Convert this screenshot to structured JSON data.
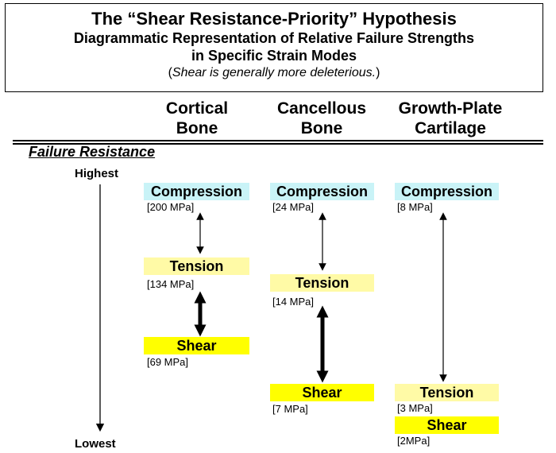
{
  "title": {
    "line1": "The “Shear Resistance-Priority” Hypothesis",
    "line2": "Diagrammatic Representation of Relative Failure Strengths",
    "line3": "in Specific Strain Modes",
    "note": "Shear is generally more deleterious.",
    "open_paren": "(",
    "close_paren": ")"
  },
  "columns": [
    {
      "header": "Cortical\nBone"
    },
    {
      "header": "Cancellous\nBone"
    },
    {
      "header": "Growth-Plate\nCartilage"
    }
  ],
  "axis": {
    "label": "Failure Resistance",
    "highest": "Highest",
    "lowest": "Lowest"
  },
  "modes": {
    "cortical": {
      "compression": {
        "label": "Compression",
        "value": "[200 MPa]"
      },
      "tension": {
        "label": "Tension",
        "value": "[134 MPa]"
      },
      "shear": {
        "label": "Shear",
        "value": "[69 MPa]"
      }
    },
    "cancellous": {
      "compression": {
        "label": "Compression",
        "value": "[24 MPa]"
      },
      "tension": {
        "label": "Tension",
        "value": "[14 MPa]"
      },
      "shear": {
        "label": "Shear",
        "value": "[7 MPa]"
      }
    },
    "growth_plate": {
      "compression": {
        "label": "Compression",
        "value": "[8 MPa]"
      },
      "tension": {
        "label": "Tension",
        "value": "[3 MPa]"
      },
      "shear": {
        "label": "Shear",
        "value": "[2MPa]"
      }
    }
  },
  "colors": {
    "compression": "#c9f3f7",
    "tension": "#fffaa6",
    "shear": "#ffff00"
  }
}
